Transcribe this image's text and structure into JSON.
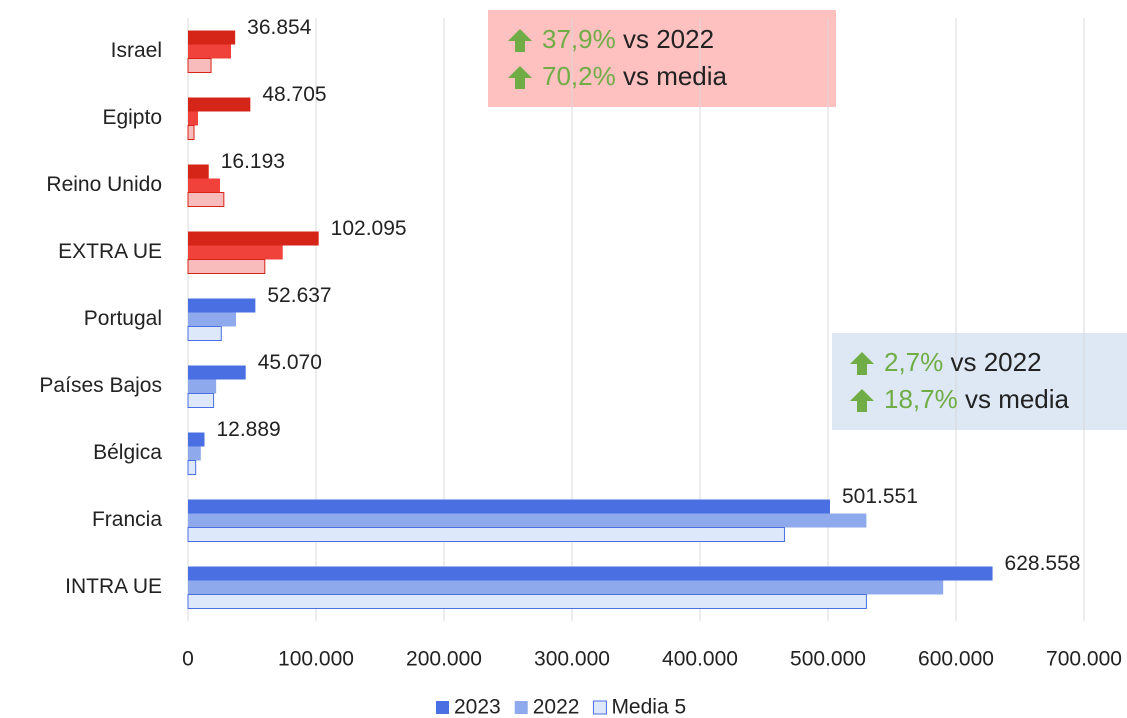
{
  "chart_data": {
    "type": "barh",
    "categories": [
      "Israel",
      "Egipto",
      "Reino Unido",
      "EXTRA UE",
      "Portugal",
      "Países Bajos",
      "Bélgica",
      "Francia",
      "INTRA UE"
    ],
    "series": [
      {
        "name": "2023",
        "color": "#4a6fe3",
        "colors": [
          "#d42518",
          "#d42518",
          "#d42518",
          "#d42518",
          "#4a6fe3",
          "#4a6fe3",
          "#4a6fe3",
          "#4a6fe3",
          "#4a6fe3"
        ],
        "values": [
          36854,
          48705,
          16193,
          102095,
          52637,
          45070,
          12889,
          501551,
          628558
        ],
        "value_labels": [
          "36.854",
          "48.705",
          "16.193",
          "102.095",
          "52.637",
          "45.070",
          "12.889",
          "501.551",
          "628.558"
        ]
      },
      {
        "name": "2022",
        "color": "#8eaaec",
        "colors": [
          "#f0413a",
          "#f0413a",
          "#f0413a",
          "#f0413a",
          "#8eaaec",
          "#8eaaec",
          "#8eaaec",
          "#8eaaec",
          "#8eaaec"
        ],
        "values": [
          33600,
          7800,
          25000,
          74000,
          37500,
          22000,
          10000,
          530000,
          590000
        ]
      },
      {
        "name": "Media 5",
        "color": "#dde8fa",
        "colors": [
          "#f8bcbc",
          "#f8bcbc",
          "#f8bcbc",
          "#f8bcbc",
          "#dde8fa",
          "#dde8fa",
          "#dde8fa",
          "#dde8fa",
          "#dde8fa"
        ],
        "values": [
          18000,
          4700,
          28000,
          60000,
          26000,
          20000,
          6000,
          466000,
          530000
        ]
      }
    ],
    "xlim": [
      0,
      700000
    ],
    "xticks": [
      0,
      {
        "value": 100000,
        "label": "100.000"
      },
      {
        "value": 200000,
        "label": "200.000"
      },
      {
        "value": 300000,
        "label": "300.000"
      },
      {
        "value": 400000,
        "label": "400.000"
      },
      {
        "value": 500000,
        "label": "500.000"
      },
      {
        "value": 600000,
        "label": "600.000"
      },
      {
        "value": 700000,
        "label": "700.000"
      }
    ],
    "grid": true,
    "legend": "bottom",
    "annotations": [
      {
        "lines": [
          {
            "value": "37,9%",
            "text": "vs 2022"
          },
          {
            "value": "70,2%",
            "text": "vs media"
          }
        ]
      },
      {
        "lines": [
          {
            "value": "2,7%",
            "text": "vs 2022"
          },
          {
            "value": "18,7%",
            "text": "vs media"
          }
        ]
      }
    ]
  }
}
